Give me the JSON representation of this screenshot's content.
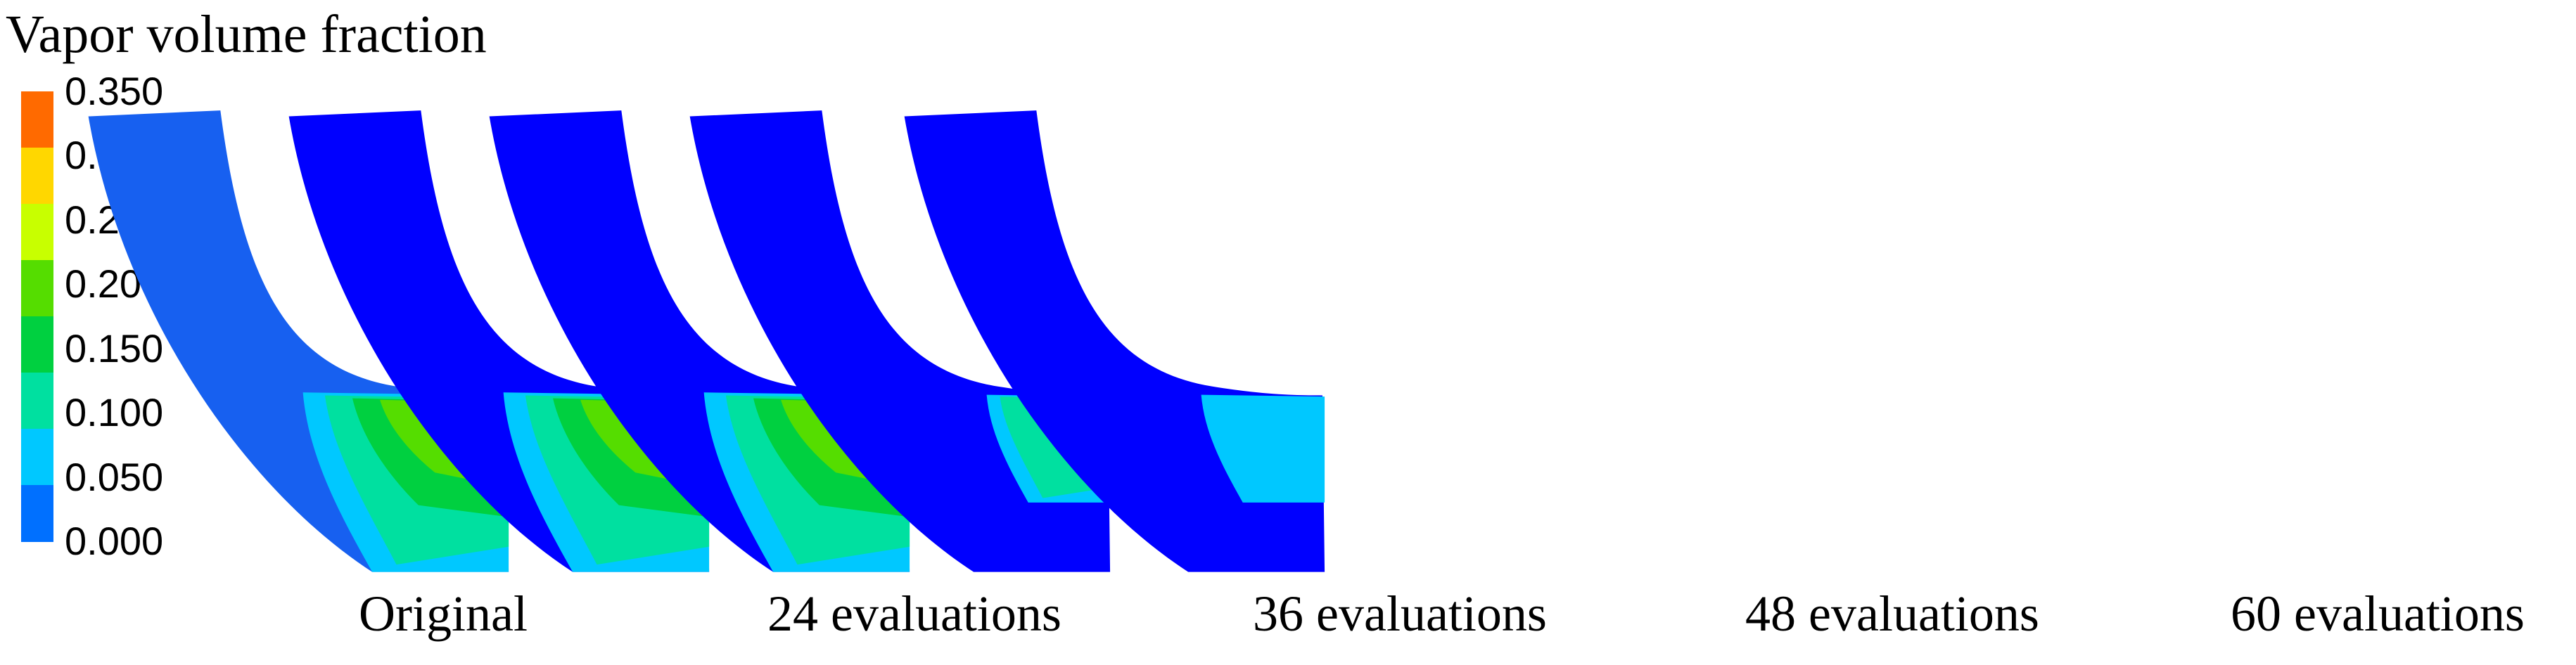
{
  "legend": {
    "title": "Vapor volume fraction",
    "ticks": [
      "0.350",
      "0.300",
      "0.250",
      "0.200",
      "0.150",
      "0.100",
      "0.050",
      "0.000"
    ],
    "colors": [
      "#ff6a00",
      "#ffd700",
      "#c8ff00",
      "#55dd00",
      "#00d040",
      "#00e0a0",
      "#00c8ff",
      "#0070ff"
    ]
  },
  "panels": [
    {
      "caption": "Original",
      "base_color": "#1760f0",
      "cavity_level": 1.0
    },
    {
      "caption": "24 evaluations",
      "base_color": "#0000ff",
      "cavity_level": 0.9
    },
    {
      "caption": "36 evaluations",
      "base_color": "#0000ff",
      "cavity_level": 0.75
    },
    {
      "caption": "48 evaluations",
      "base_color": "#0000ff",
      "cavity_level": 0.35
    },
    {
      "caption": "60 evaluations",
      "base_color": "#0000ff",
      "cavity_level": 0.05
    }
  ]
}
